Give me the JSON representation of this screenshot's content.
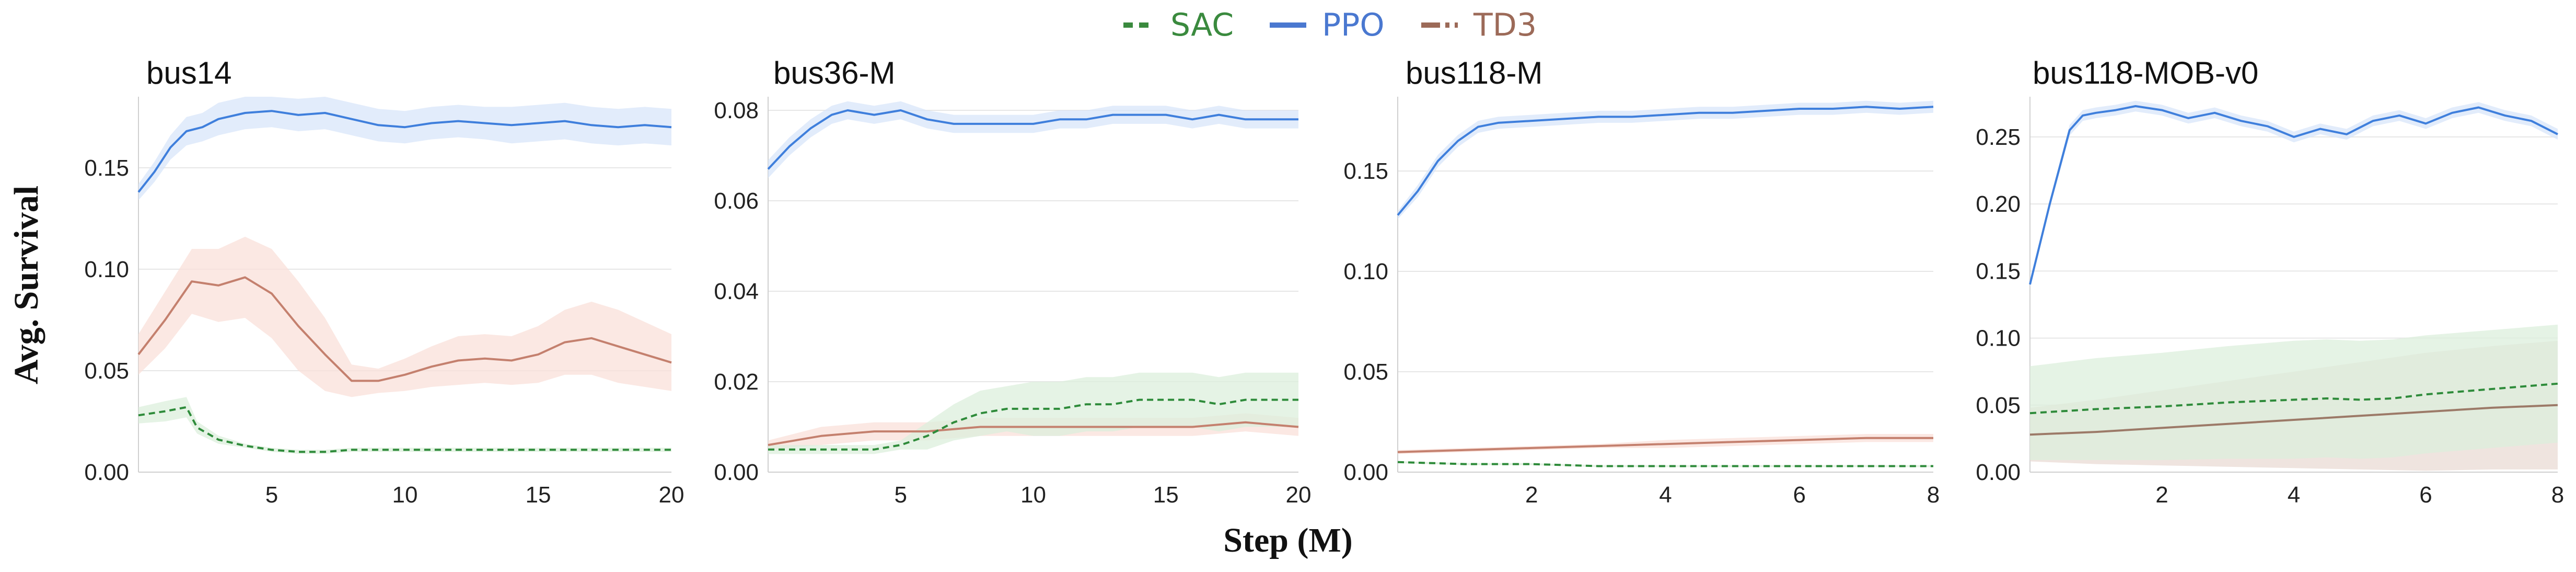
{
  "legend": [
    {
      "name": "SAC",
      "color": "#3a8a3e",
      "dash": "dashed"
    },
    {
      "name": "PPO",
      "color": "#4a78d0",
      "dash": "solid"
    },
    {
      "name": "TD3",
      "color": "#9c6a58",
      "dash": "dashdot"
    }
  ],
  "xlabel": "Step (M)",
  "ylabel": "Avg. Survival",
  "chart_data": [
    {
      "type": "line",
      "title": "bus14",
      "xlim": [
        0,
        20
      ],
      "ylim": [
        0,
        0.185
      ],
      "xticks": [
        5,
        10,
        15,
        20
      ],
      "xtick_labels": [
        "5",
        "10",
        "15",
        "20"
      ],
      "yticks": [
        0,
        0.05,
        0.1,
        0.15
      ],
      "ytick_labels": [
        "0.00",
        "0.05",
        "0.10",
        "0.15"
      ],
      "series": [
        {
          "name": "PPO",
          "color": "#3f7fdc",
          "fill": "#d8e6fa",
          "x": [
            0,
            0.6,
            1.2,
            1.8,
            2.4,
            3,
            4,
            5,
            6,
            7,
            8,
            9,
            10,
            11,
            12,
            13,
            14,
            15,
            16,
            17,
            18,
            19,
            20
          ],
          "y": [
            0.138,
            0.148,
            0.16,
            0.168,
            0.17,
            0.174,
            0.177,
            0.178,
            0.176,
            0.177,
            0.174,
            0.171,
            0.17,
            0.172,
            0.173,
            0.172,
            0.171,
            0.172,
            0.173,
            0.171,
            0.17,
            0.171,
            0.17
          ],
          "band": [
            0.004,
            0.005,
            0.006,
            0.007,
            0.007,
            0.008,
            0.008,
            0.008,
            0.008,
            0.008,
            0.008,
            0.008,
            0.008,
            0.008,
            0.008,
            0.008,
            0.009,
            0.009,
            0.009,
            0.009,
            0.009,
            0.009,
            0.009
          ]
        },
        {
          "name": "TD3",
          "color": "#c4806e",
          "fill": "#f9e0da",
          "x": [
            0,
            1,
            2,
            3,
            4,
            5,
            6,
            7,
            8,
            9,
            10,
            11,
            12,
            13,
            14,
            15,
            16,
            17,
            18,
            19,
            20
          ],
          "y": [
            0.058,
            0.075,
            0.094,
            0.092,
            0.096,
            0.088,
            0.072,
            0.058,
            0.045,
            0.045,
            0.048,
            0.052,
            0.055,
            0.056,
            0.055,
            0.058,
            0.064,
            0.066,
            0.062,
            0.058,
            0.054
          ],
          "band": [
            0.01,
            0.014,
            0.016,
            0.018,
            0.02,
            0.022,
            0.022,
            0.018,
            0.008,
            0.006,
            0.008,
            0.01,
            0.012,
            0.012,
            0.012,
            0.014,
            0.016,
            0.018,
            0.018,
            0.016,
            0.014
          ]
        },
        {
          "name": "SAC",
          "color": "#2e8b3a",
          "fill": "#dcefdc",
          "dashed": true,
          "x": [
            0,
            1,
            1.8,
            2.2,
            3,
            4,
            5,
            6,
            7,
            8,
            9,
            10,
            12,
            14,
            16,
            18,
            20
          ],
          "y": [
            0.028,
            0.03,
            0.032,
            0.022,
            0.016,
            0.013,
            0.011,
            0.01,
            0.01,
            0.011,
            0.011,
            0.011,
            0.011,
            0.011,
            0.011,
            0.011,
            0.011
          ],
          "band": [
            0.004,
            0.005,
            0.005,
            0.003,
            0.002,
            0.001,
            0.001,
            0.001,
            0.001,
            0.001,
            0.001,
            0.001,
            0.001,
            0.001,
            0.001,
            0.001,
            0.001
          ]
        }
      ]
    },
    {
      "type": "line",
      "title": "bus36-M",
      "xlim": [
        0,
        20
      ],
      "ylim": [
        0,
        0.083
      ],
      "xticks": [
        5,
        10,
        15,
        20
      ],
      "xtick_labels": [
        "5",
        "10",
        "15",
        "20"
      ],
      "yticks": [
        0,
        0.02,
        0.04,
        0.06,
        0.08
      ],
      "ytick_labels": [
        "0.00",
        "0.02",
        "0.04",
        "0.06",
        "0.08"
      ],
      "series": [
        {
          "name": "PPO",
          "color": "#3f7fdc",
          "fill": "#d8e6fa",
          "x": [
            0,
            0.8,
            1.6,
            2.4,
            3,
            4,
            5,
            6,
            7,
            8,
            9,
            10,
            11,
            12,
            13,
            14,
            15,
            16,
            17,
            18,
            19,
            20
          ],
          "y": [
            0.067,
            0.072,
            0.076,
            0.079,
            0.08,
            0.079,
            0.08,
            0.078,
            0.077,
            0.077,
            0.077,
            0.077,
            0.078,
            0.078,
            0.079,
            0.079,
            0.079,
            0.078,
            0.079,
            0.078,
            0.078,
            0.078
          ],
          "band": [
            0.002,
            0.002,
            0.002,
            0.002,
            0.002,
            0.002,
            0.002,
            0.002,
            0.002,
            0.002,
            0.002,
            0.002,
            0.002,
            0.002,
            0.002,
            0.002,
            0.002,
            0.002,
            0.002,
            0.002,
            0.002,
            0.002
          ]
        },
        {
          "name": "TD3",
          "color": "#c4806e",
          "fill": "#f9e0da",
          "x": [
            0,
            2,
            4,
            6,
            8,
            10,
            12,
            14,
            16,
            18,
            20
          ],
          "y": [
            0.006,
            0.008,
            0.009,
            0.009,
            0.01,
            0.01,
            0.01,
            0.01,
            0.01,
            0.011,
            0.01
          ],
          "band": [
            0.001,
            0.002,
            0.002,
            0.002,
            0.002,
            0.002,
            0.002,
            0.002,
            0.002,
            0.002,
            0.002
          ]
        },
        {
          "name": "SAC",
          "color": "#2e8b3a",
          "fill": "#dcefdc",
          "dashed": true,
          "x": [
            0,
            2,
            4,
            5,
            6,
            7,
            8,
            9,
            10,
            11,
            12,
            13,
            14,
            15,
            16,
            17,
            18,
            19,
            20
          ],
          "y": [
            0.005,
            0.005,
            0.005,
            0.006,
            0.008,
            0.011,
            0.013,
            0.014,
            0.014,
            0.014,
            0.015,
            0.015,
            0.016,
            0.016,
            0.016,
            0.015,
            0.016,
            0.016,
            0.016
          ],
          "band": [
            0.001,
            0.001,
            0.001,
            0.001,
            0.003,
            0.004,
            0.005,
            0.005,
            0.006,
            0.006,
            0.006,
            0.006,
            0.006,
            0.006,
            0.006,
            0.006,
            0.006,
            0.006,
            0.006
          ]
        }
      ]
    },
    {
      "type": "line",
      "title": "bus118-M",
      "xlim": [
        0,
        8
      ],
      "ylim": [
        0,
        0.187
      ],
      "xticks": [
        2,
        4,
        6,
        8
      ],
      "xtick_labels": [
        "2",
        "4",
        "6",
        "8"
      ],
      "yticks": [
        0,
        0.05,
        0.1,
        0.15
      ],
      "ytick_labels": [
        "0.00",
        "0.05",
        "0.10",
        "0.15"
      ],
      "series": [
        {
          "name": "PPO",
          "color": "#3f7fdc",
          "fill": "#d8e6fa",
          "x": [
            0,
            0.3,
            0.6,
            0.9,
            1.2,
            1.5,
            2,
            2.5,
            3,
            3.5,
            4,
            4.5,
            5,
            5.5,
            6,
            6.5,
            7,
            7.5,
            8
          ],
          "y": [
            0.128,
            0.14,
            0.155,
            0.165,
            0.172,
            0.174,
            0.175,
            0.176,
            0.177,
            0.177,
            0.178,
            0.179,
            0.179,
            0.18,
            0.181,
            0.181,
            0.182,
            0.181,
            0.182
          ],
          "band": [
            0.002,
            0.003,
            0.003,
            0.003,
            0.003,
            0.003,
            0.003,
            0.003,
            0.003,
            0.003,
            0.003,
            0.003,
            0.003,
            0.003,
            0.003,
            0.003,
            0.003,
            0.003,
            0.003
          ]
        },
        {
          "name": "TD3",
          "color": "#c4806e",
          "fill": "#f9e0da",
          "x": [
            0,
            1,
            2,
            3,
            4,
            5,
            6,
            7,
            8
          ],
          "y": [
            0.01,
            0.011,
            0.012,
            0.013,
            0.014,
            0.015,
            0.016,
            0.017,
            0.017
          ],
          "band": [
            0.001,
            0.001,
            0.001,
            0.001,
            0.002,
            0.002,
            0.002,
            0.002,
            0.002
          ]
        },
        {
          "name": "SAC",
          "color": "#2e8b3a",
          "fill": "#dcefdc",
          "dashed": true,
          "x": [
            0,
            1,
            2,
            3,
            4,
            5,
            6,
            7,
            8
          ],
          "y": [
            0.005,
            0.004,
            0.004,
            0.003,
            0.003,
            0.003,
            0.003,
            0.003,
            0.003
          ],
          "band": [
            0.0005,
            0.0005,
            0.0005,
            0.0005,
            0.0005,
            0.0005,
            0.0005,
            0.0005,
            0.0005
          ]
        }
      ]
    },
    {
      "type": "line",
      "title": "bus118-MOB-v0",
      "xlim": [
        0,
        8
      ],
      "ylim": [
        0,
        0.28
      ],
      "xticks": [
        2,
        4,
        6,
        8
      ],
      "xtick_labels": [
        "2",
        "4",
        "6",
        "8"
      ],
      "yticks": [
        0,
        0.05,
        0.1,
        0.15,
        0.2,
        0.25
      ],
      "ytick_labels": [
        "0.00",
        "0.05",
        "0.10",
        "0.15",
        "0.20",
        "0.25"
      ],
      "series": [
        {
          "name": "PPO",
          "color": "#3f7fdc",
          "fill": "#d8e6fa",
          "x": [
            0,
            0.3,
            0.6,
            0.8,
            1.0,
            1.3,
            1.6,
            2,
            2.4,
            2.8,
            3.2,
            3.6,
            4,
            4.4,
            4.8,
            5.2,
            5.6,
            6,
            6.4,
            6.8,
            7.2,
            7.6,
            8
          ],
          "y": [
            0.14,
            0.2,
            0.255,
            0.266,
            0.268,
            0.27,
            0.273,
            0.27,
            0.264,
            0.268,
            0.262,
            0.258,
            0.25,
            0.256,
            0.252,
            0.262,
            0.266,
            0.26,
            0.268,
            0.272,
            0.266,
            0.262,
            0.252
          ],
          "band": [
            0.002,
            0.003,
            0.004,
            0.004,
            0.004,
            0.004,
            0.004,
            0.004,
            0.004,
            0.004,
            0.004,
            0.004,
            0.004,
            0.004,
            0.004,
            0.004,
            0.004,
            0.004,
            0.004,
            0.004,
            0.004,
            0.004,
            0.004
          ]
        },
        {
          "name": "TD3",
          "color": "#9c7a68",
          "fill": "#e9dbd4",
          "x": [
            0,
            1,
            2,
            3,
            4,
            5,
            6,
            7,
            8
          ],
          "y": [
            0.028,
            0.03,
            0.033,
            0.036,
            0.039,
            0.042,
            0.045,
            0.048,
            0.05
          ],
          "band": [
            0.02,
            0.024,
            0.028,
            0.032,
            0.036,
            0.04,
            0.044,
            0.046,
            0.048
          ]
        },
        {
          "name": "SAC",
          "color": "#2e8b3a",
          "fill": "#dcefdc",
          "dashed": true,
          "x": [
            0,
            1,
            2,
            3,
            4,
            4.5,
            5,
            5.5,
            6,
            7,
            8
          ],
          "y": [
            0.044,
            0.047,
            0.049,
            0.052,
            0.054,
            0.055,
            0.054,
            0.055,
            0.058,
            0.062,
            0.066
          ],
          "band": [
            0.035,
            0.038,
            0.04,
            0.042,
            0.044,
            0.044,
            0.044,
            0.044,
            0.044,
            0.044,
            0.044
          ]
        }
      ]
    }
  ]
}
